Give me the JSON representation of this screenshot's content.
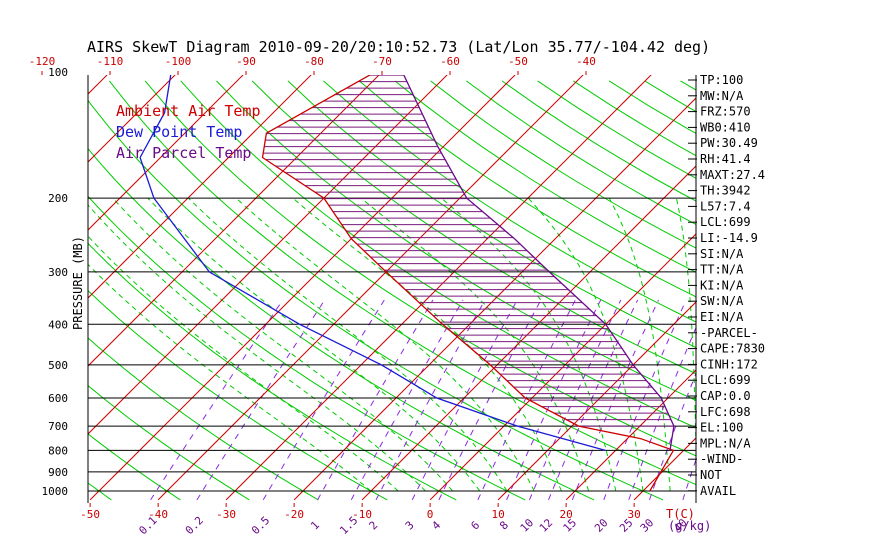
{
  "colors": {
    "ambient": "#cc0000",
    "dew": "#1a1ad6",
    "parcel": "#6a0a8a",
    "dry_adiabat": "#00cc00",
    "moist_adiabat": "#2222cc",
    "mixing_ratio": "#8a2be2",
    "hatch": "#7a1a7a",
    "axis": "#000000"
  },
  "chart_data": {
    "type": "line",
    "title": "AIRS SkewT Diagram 2010-09-20/20:10:52.73 (Lat/Lon 35.77/-104.42 deg)",
    "ylabel": "PRESSURE (MB)",
    "xlabel": "T(C)",
    "mixing_ratio_unit": "(g/kg)",
    "yscale": "log",
    "ylim": [
      1050,
      100
    ],
    "pressure_ticks": [
      100,
      200,
      300,
      400,
      500,
      600,
      700,
      800,
      900,
      1000
    ],
    "top_temp_ticks": [
      -120,
      -110,
      -100,
      -90,
      -80,
      -70,
      -60,
      -50,
      -40
    ],
    "bottom_temp_ticks": [
      -50,
      -40,
      -30,
      -20,
      -10,
      0,
      10,
      20,
      30
    ],
    "mixing_ratio_ticks": [
      "0.1",
      "0.2",
      "0.5",
      "1",
      "1.5",
      "2",
      "3",
      "4",
      "6",
      "8",
      "10",
      "12",
      "15",
      "20",
      "25",
      "30",
      "40"
    ],
    "legend": [
      "Ambient Air Temp",
      "Dew Point Temp",
      "Air Parcel Temp"
    ],
    "series": [
      {
        "name": "Ambient Air Temp",
        "points": [
          {
            "p": 1000,
            "t": 31
          },
          {
            "p": 800,
            "t": 28.5
          },
          {
            "p": 750,
            "t": 22
          },
          {
            "p": 700,
            "t": 11
          },
          {
            "p": 600,
            "t": -1
          },
          {
            "p": 500,
            "t": -11
          },
          {
            "p": 400,
            "t": -24
          },
          {
            "p": 300,
            "t": -40
          },
          {
            "p": 250,
            "t": -50
          },
          {
            "p": 200,
            "t": -60
          },
          {
            "p": 160,
            "t": -75
          },
          {
            "p": 140,
            "t": -78
          },
          {
            "p": 100,
            "t": -71
          }
        ]
      },
      {
        "name": "Dew Point Temp",
        "points": [
          {
            "p": 800,
            "t": 18.5
          },
          {
            "p": 700,
            "t": 2
          },
          {
            "p": 600,
            "t": -14
          },
          {
            "p": 500,
            "t": -27
          },
          {
            "p": 400,
            "t": -45
          },
          {
            "p": 300,
            "t": -66
          },
          {
            "p": 200,
            "t": -85
          },
          {
            "p": 160,
            "t": -93
          },
          {
            "p": 125,
            "t": -96
          },
          {
            "p": 100,
            "t": -101
          }
        ]
      },
      {
        "name": "Air Parcel Temp",
        "points": [
          {
            "p": 800,
            "t": 28
          },
          {
            "p": 700,
            "t": 25
          },
          {
            "p": 600,
            "t": 19
          },
          {
            "p": 500,
            "t": 10
          },
          {
            "p": 400,
            "t": 0
          },
          {
            "p": 300,
            "t": -16
          },
          {
            "p": 250,
            "t": -26
          },
          {
            "p": 200,
            "t": -39
          },
          {
            "p": 150,
            "t": -51
          },
          {
            "p": 100,
            "t": -67
          }
        ]
      }
    ],
    "indices": [
      {
        "label": "TP:100"
      },
      {
        "label": "MW:N/A"
      },
      {
        "label": "FRZ:570"
      },
      {
        "label": "WB0:410"
      },
      {
        "label": "PW:30.49"
      },
      {
        "label": "RH:41.4"
      },
      {
        "label": "MAXT:27.4"
      },
      {
        "label": "TH:3942"
      },
      {
        "label": "L57:7.4"
      },
      {
        "label": "LCL:699"
      },
      {
        "label": "LI:-14.9"
      },
      {
        "label": "SI:N/A"
      },
      {
        "label": "TT:N/A"
      },
      {
        "label": "KI:N/A"
      },
      {
        "label": "SW:N/A"
      },
      {
        "label": "EI:N/A"
      },
      {
        "label": "-PARCEL-"
      },
      {
        "label": "CAPE:7830"
      },
      {
        "label": "CINH:172"
      },
      {
        "label": "LCL:699"
      },
      {
        "label": "CAP:0.0"
      },
      {
        "label": "LFC:698"
      },
      {
        "label": "EL:100"
      },
      {
        "label": "MPL:N/A"
      },
      {
        "label": "-WIND-"
      },
      {
        "label": "NOT"
      },
      {
        "label": "AVAIL"
      }
    ]
  }
}
